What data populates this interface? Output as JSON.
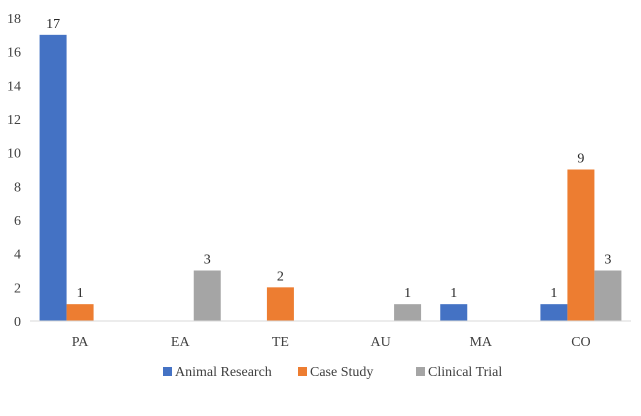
{
  "chart_data": {
    "type": "bar",
    "categories": [
      "PA",
      "EA",
      "TE",
      "AU",
      "MA",
      "CO"
    ],
    "series": [
      {
        "name": "Animal Research",
        "values": [
          17,
          0,
          0,
          0,
          1,
          1
        ],
        "color": "#4472C4"
      },
      {
        "name": "Case Study",
        "values": [
          1,
          0,
          2,
          0,
          0,
          9
        ],
        "color": "#ED7D31"
      },
      {
        "name": "Clinical Trial",
        "values": [
          0,
          3,
          0,
          1,
          0,
          3
        ],
        "color": "#A5A5A5"
      }
    ],
    "ylim": [
      0,
      18
    ],
    "yticks": [
      0,
      2,
      4,
      6,
      8,
      10,
      12,
      14,
      16,
      18
    ],
    "legend_position": "bottom",
    "grid": false
  }
}
